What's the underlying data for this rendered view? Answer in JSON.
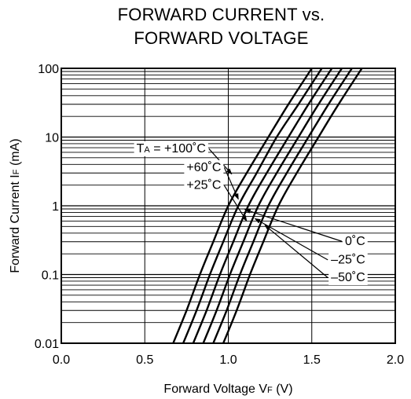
{
  "chart_data": {
    "type": "line",
    "title_lines": [
      "FORWARD CURRENT vs.",
      "FORWARD VOLTAGE"
    ],
    "xlabel": {
      "text": "Forward Voltage  V",
      "sub": "F",
      "unit": " (V)"
    },
    "ylabel": {
      "text": "Forward Current  I",
      "sub": "F",
      "unit": " (mA)"
    },
    "xlim": [
      0.0,
      2.0
    ],
    "ylim": [
      0.01,
      100
    ],
    "yscale": "log",
    "grid": true,
    "xticks": [
      {
        "value": 0.0,
        "label": "0.0"
      },
      {
        "value": 0.5,
        "label": "0.5"
      },
      {
        "value": 1.0,
        "label": "1.0"
      },
      {
        "value": 1.5,
        "label": "1.5"
      },
      {
        "value": 2.0,
        "label": "2.0"
      }
    ],
    "yticks": [
      {
        "value": 0.01,
        "label": "0.01"
      },
      {
        "value": 0.1,
        "label": "0.1"
      },
      {
        "value": 1,
        "label": "1"
      },
      {
        "value": 10,
        "label": "10"
      },
      {
        "value": 100,
        "label": "100"
      }
    ],
    "series": [
      {
        "name": "+100˚C",
        "x": [
          0.67,
          0.75,
          0.83,
          0.91,
          1.0,
          1.11,
          1.24,
          1.36,
          1.5
        ],
        "y": [
          0.01,
          0.03,
          0.1,
          0.3,
          1,
          3,
          10,
          30,
          100
        ]
      },
      {
        "name": "+60˚C",
        "x": [
          0.73,
          0.81,
          0.89,
          0.97,
          1.06,
          1.17,
          1.29,
          1.42,
          1.56
        ],
        "y": [
          0.01,
          0.03,
          0.1,
          0.3,
          1,
          3,
          10,
          30,
          100
        ]
      },
      {
        "name": "+25˚C",
        "x": [
          0.79,
          0.87,
          0.95,
          1.03,
          1.12,
          1.23,
          1.36,
          1.48,
          1.62
        ],
        "y": [
          0.01,
          0.03,
          0.1,
          0.3,
          1,
          3,
          10,
          30,
          100
        ]
      },
      {
        "name": "0˚C",
        "x": [
          0.85,
          0.93,
          1.01,
          1.09,
          1.18,
          1.29,
          1.42,
          1.54,
          1.68
        ],
        "y": [
          0.01,
          0.03,
          0.1,
          0.3,
          1,
          3,
          10,
          30,
          100
        ]
      },
      {
        "name": "–25˚C",
        "x": [
          0.91,
          0.99,
          1.07,
          1.15,
          1.24,
          1.35,
          1.48,
          1.6,
          1.74
        ],
        "y": [
          0.01,
          0.03,
          0.1,
          0.3,
          1,
          3,
          10,
          30,
          100
        ]
      },
      {
        "name": "–50˚C",
        "x": [
          0.97,
          1.05,
          1.13,
          1.21,
          1.3,
          1.41,
          1.54,
          1.66,
          1.8
        ],
        "y": [
          0.01,
          0.03,
          0.1,
          0.3,
          1,
          3,
          10,
          30,
          100
        ]
      }
    ],
    "annotations": [
      {
        "label_prefix": "T",
        "label_sub": "A",
        "label": " = +100˚C",
        "series": 0,
        "side": "left",
        "text_x": 0.45,
        "text_y": 6.0,
        "arrow_x": 1.02,
        "arrow_y": 2.9
      },
      {
        "label": "+60˚C",
        "series": 1,
        "side": "left",
        "text_x": 0.75,
        "text_y": 3.2,
        "arrow_x": 1.06,
        "arrow_y": 1.25
      },
      {
        "label": "+25˚C",
        "series": 2,
        "side": "left",
        "text_x": 0.75,
        "text_y": 1.75,
        "arrow_x": 1.11,
        "arrow_y": 0.6
      },
      {
        "label": "0˚C",
        "series": 3,
        "side": "right",
        "text_x": 1.82,
        "text_y": 0.27,
        "arrow_x": 1.1,
        "arrow_y": 0.88
      },
      {
        "label": "–25˚C",
        "series": 4,
        "side": "right",
        "text_x": 1.82,
        "text_y": 0.145,
        "arrow_x": 1.16,
        "arrow_y": 0.65
      },
      {
        "label": "–50˚C",
        "series": 5,
        "side": "right",
        "text_x": 1.82,
        "text_y": 0.08,
        "arrow_x": 1.22,
        "arrow_y": 0.52
      }
    ]
  }
}
